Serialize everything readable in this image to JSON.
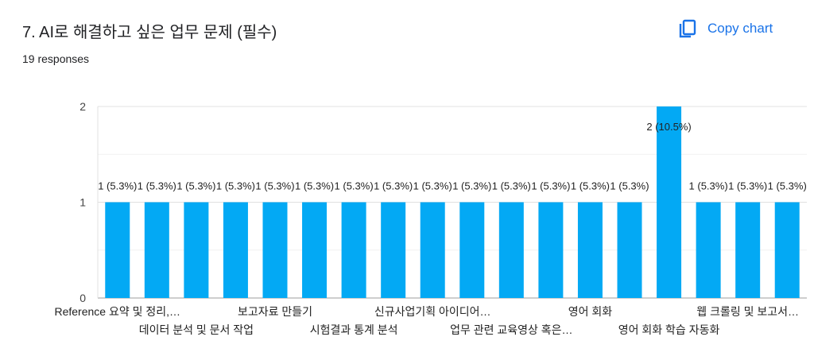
{
  "header": {
    "title": "7. AI로 해결하고 싶은 업무 문제 (필수)",
    "responses": "19 responses",
    "copy_label": "Copy chart",
    "copy_icon": "copy-icon"
  },
  "colors": {
    "bar": "#03a9f4",
    "accent": "#1a73e8",
    "grid": "#e0e0e0"
  },
  "chart_data": {
    "type": "bar",
    "title": "7. AI로 해결하고 싶은 업무 문제 (필수)",
    "ylim": [
      0,
      2
    ],
    "yticks": [
      "0",
      "1",
      "2"
    ],
    "grid": true,
    "values": [
      1,
      1,
      1,
      1,
      1,
      1,
      1,
      1,
      1,
      1,
      1,
      1,
      1,
      1,
      2,
      1,
      1,
      1
    ],
    "data_labels": [
      "1 (5.3%)",
      "1 (5.3%)",
      "1 (5.3%)",
      "1 (5.3%)",
      "1 (5.3%)",
      "1 (5.3%)",
      "1 (5.3%)",
      "1 (5.3%)",
      "1 (5.3%)",
      "1 (5.3%)",
      "1 (5.3%)",
      "1 (5.3%)",
      "1 (5.3%)",
      "1 (5.3%)",
      "2 (10.5%)",
      "1 (5.3%)",
      "1 (5.3%)",
      "1 (5.3%)"
    ],
    "categories": [
      "Reference 요약 및 정리,…",
      "",
      "데이터 분석 및 문서 작업",
      "",
      "보고자료 만들기",
      "",
      "시험결과 통계 분석",
      "",
      "신규사업기획 아이디어…",
      "",
      "업무 관련 교육영상 혹은…",
      "",
      "영어 회화",
      "",
      "영어 회화 학습 자동화",
      "",
      "웹 크롤링 및 보고서…",
      ""
    ]
  }
}
